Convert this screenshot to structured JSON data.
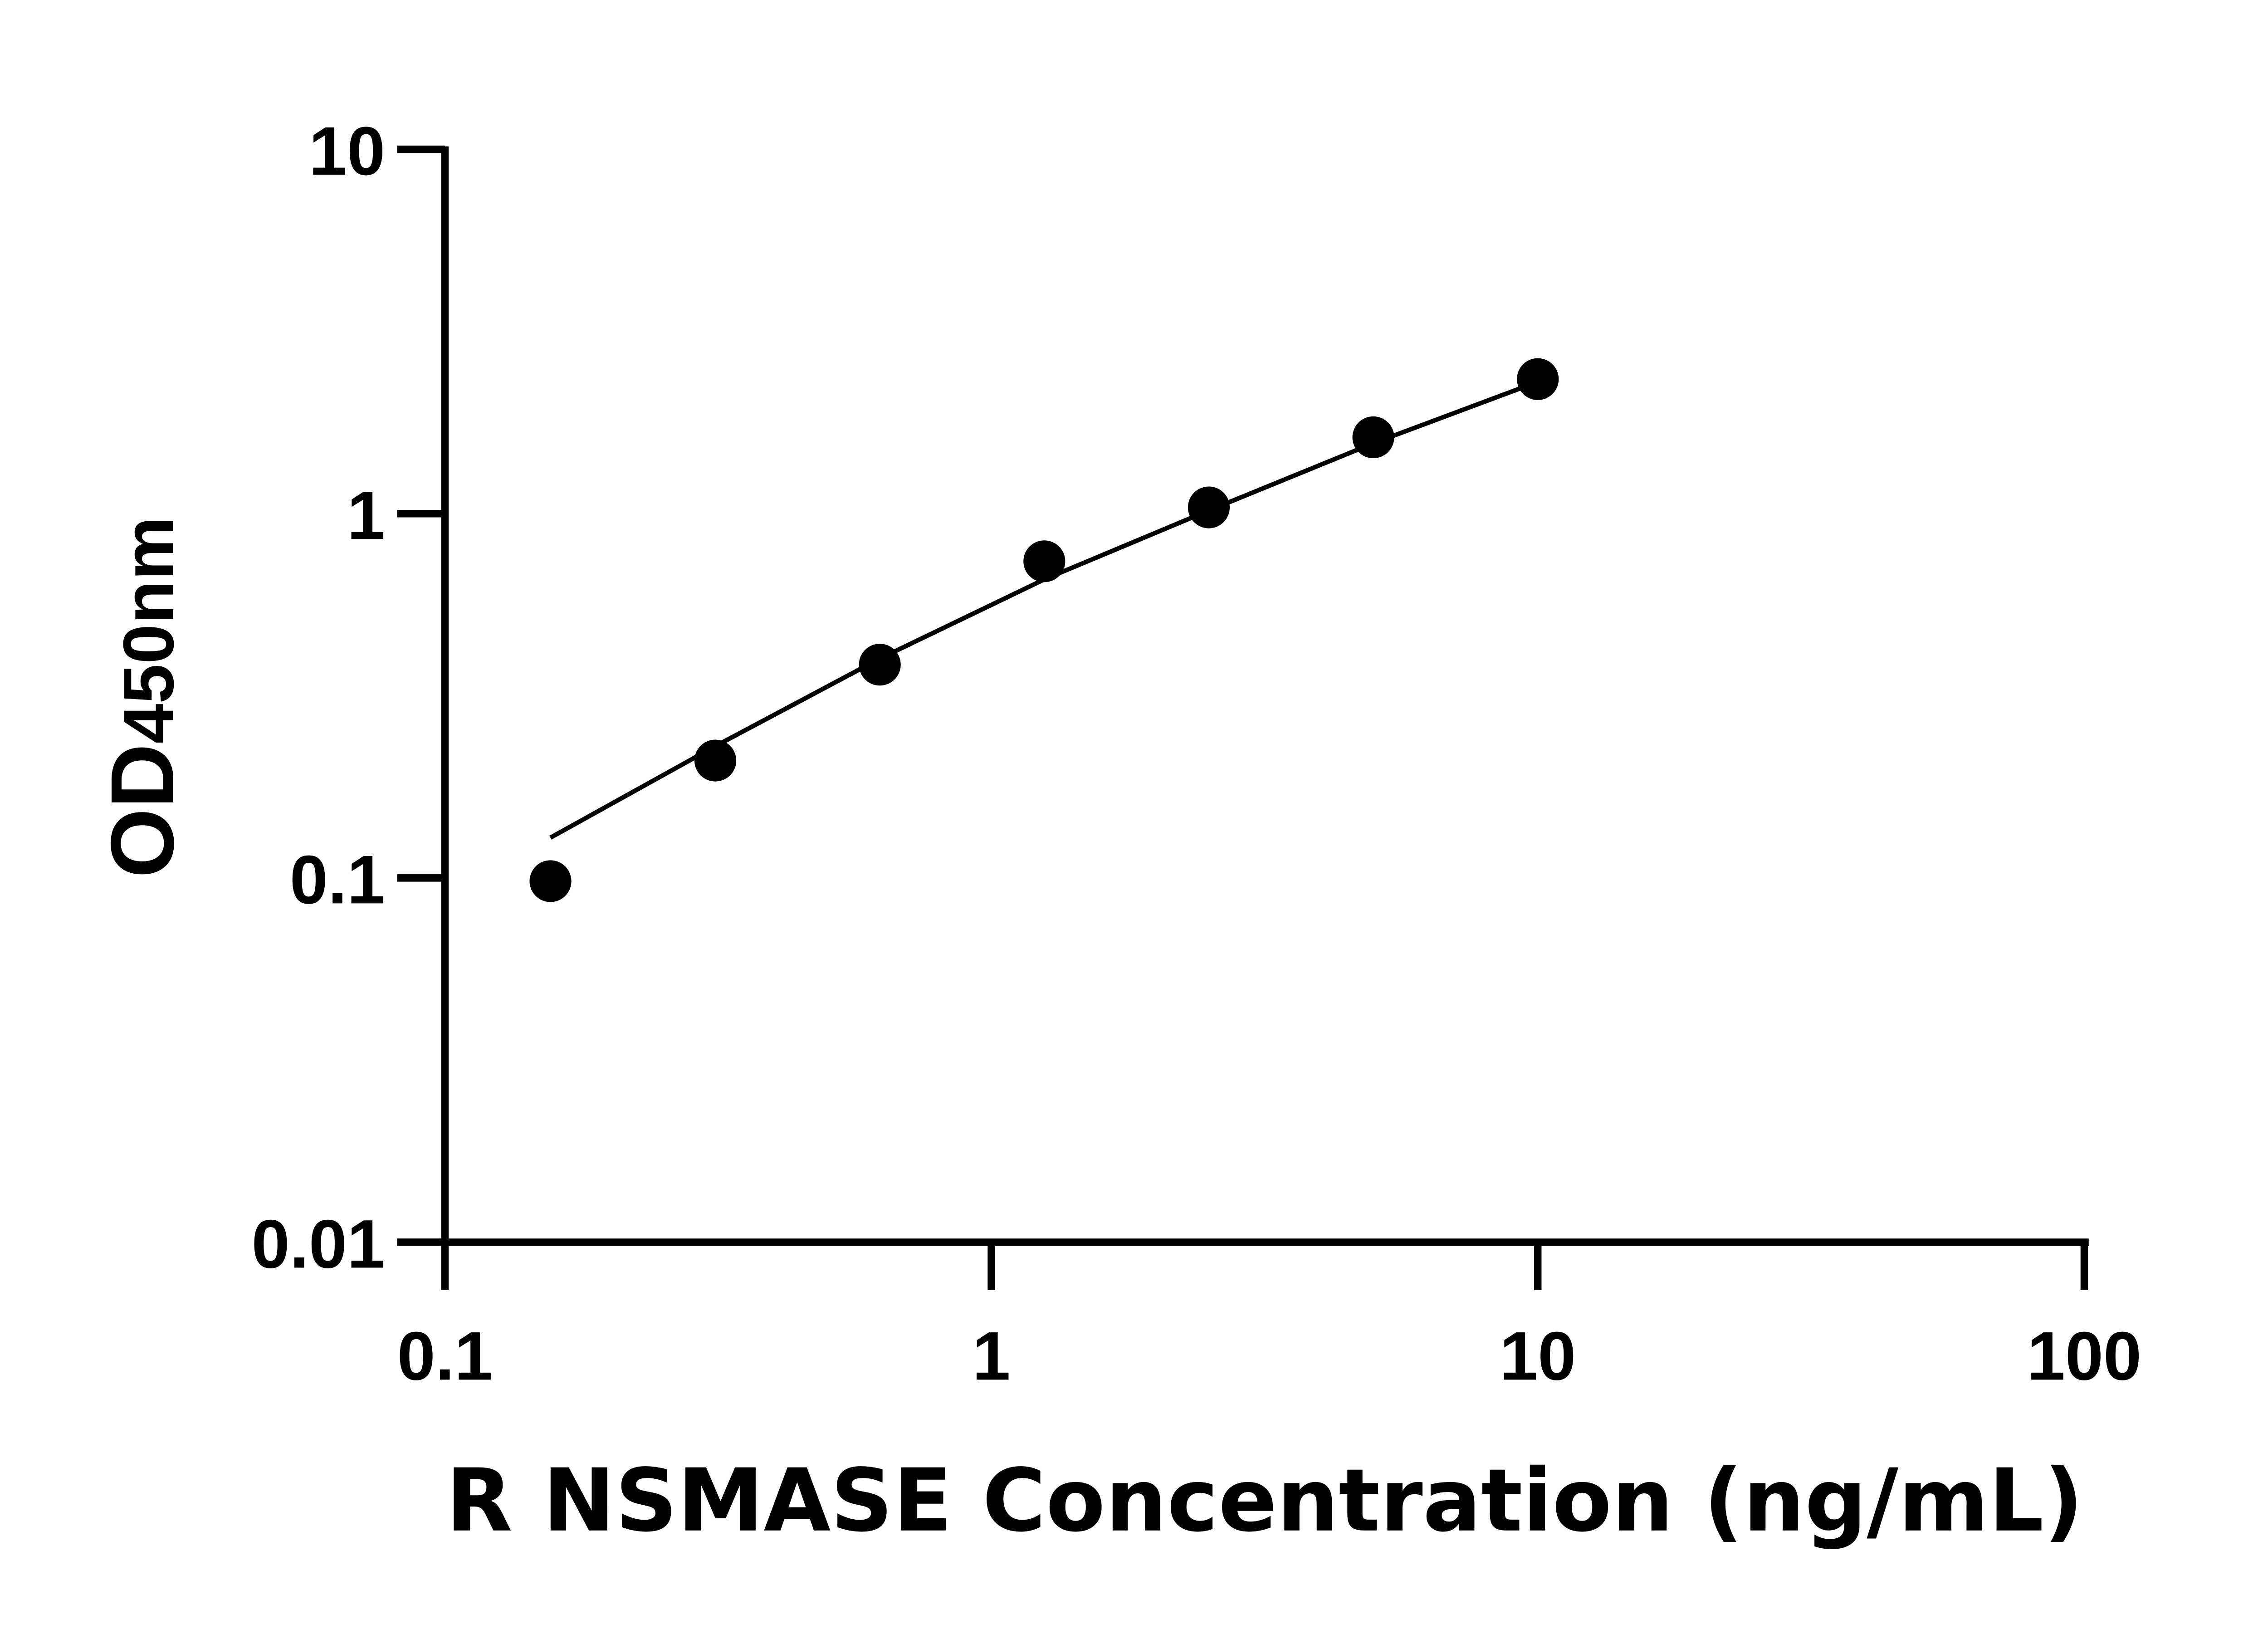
{
  "chart_data": {
    "type": "scatter",
    "xlabel": "R NSMASE Concentration (ng/mL)",
    "ylabel_main": "OD",
    "ylabel_sub": "450nm",
    "x_scale": "log",
    "y_scale": "log",
    "xlim": [
      0.1,
      100
    ],
    "ylim": [
      0.01,
      10
    ],
    "x_ticks": [
      "0.1",
      "1",
      "10",
      "100"
    ],
    "y_ticks": [
      "0.01",
      "0.1",
      "1",
      "10"
    ],
    "grid": false,
    "legend": "none",
    "marker_color": "#000000",
    "points": {
      "x": [
        0.156,
        0.3125,
        0.625,
        1.25,
        2.5,
        5,
        10
      ],
      "y": [
        0.098,
        0.21,
        0.385,
        0.74,
        1.04,
        1.62,
        2.34
      ]
    },
    "fit_curve": {
      "x": [
        0.156,
        0.3125,
        0.625,
        1.25,
        2.5,
        5,
        10
      ],
      "y": [
        0.129,
        0.23,
        0.4,
        0.66,
        1.02,
        1.56,
        2.3
      ]
    }
  }
}
